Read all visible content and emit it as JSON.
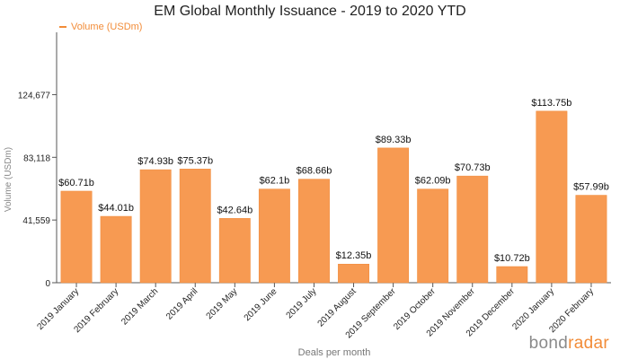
{
  "chart_data": {
    "type": "bar",
    "title": "EM Global Monthly Issuance - 2019 to 2020 YTD",
    "xlabel": "Deals per month",
    "ylabel": "Volume (USDm)",
    "ylim": [
      0,
      166000
    ],
    "yticks": [
      0,
      41559,
      83118,
      124677
    ],
    "ytick_labels": [
      "0",
      "41,559",
      "83,118",
      "124,677"
    ],
    "grid": false,
    "legend": "top-left",
    "categories": [
      "2019 January",
      "2019 February",
      "2019 March",
      "2019 April",
      "2019 May",
      "2019 June",
      "2019 July",
      "2019 August",
      "2019 September",
      "2019 October",
      "2019 November",
      "2019 December",
      "2020 January",
      "2020 February"
    ],
    "series": [
      {
        "name": "Volume (USDm)",
        "color": "#f79a52",
        "values": [
          60710,
          44010,
          74930,
          75370,
          42640,
          62100,
          68660,
          12350,
          89330,
          62090,
          70730,
          10720,
          113750,
          57990
        ],
        "labels": [
          "$60.71b",
          "$44.01b",
          "$74.93b",
          "$75.37b",
          "$42.64b",
          "$62.1b",
          "$68.66b",
          "$12.35b",
          "$89.33b",
          "$62.09b",
          "$70.73b",
          "$10.72b",
          "$113.75b",
          "$57.99b"
        ]
      }
    ]
  },
  "brand": {
    "part1": "bond",
    "part2": "radar",
    "accent_color": "#f28c38"
  }
}
